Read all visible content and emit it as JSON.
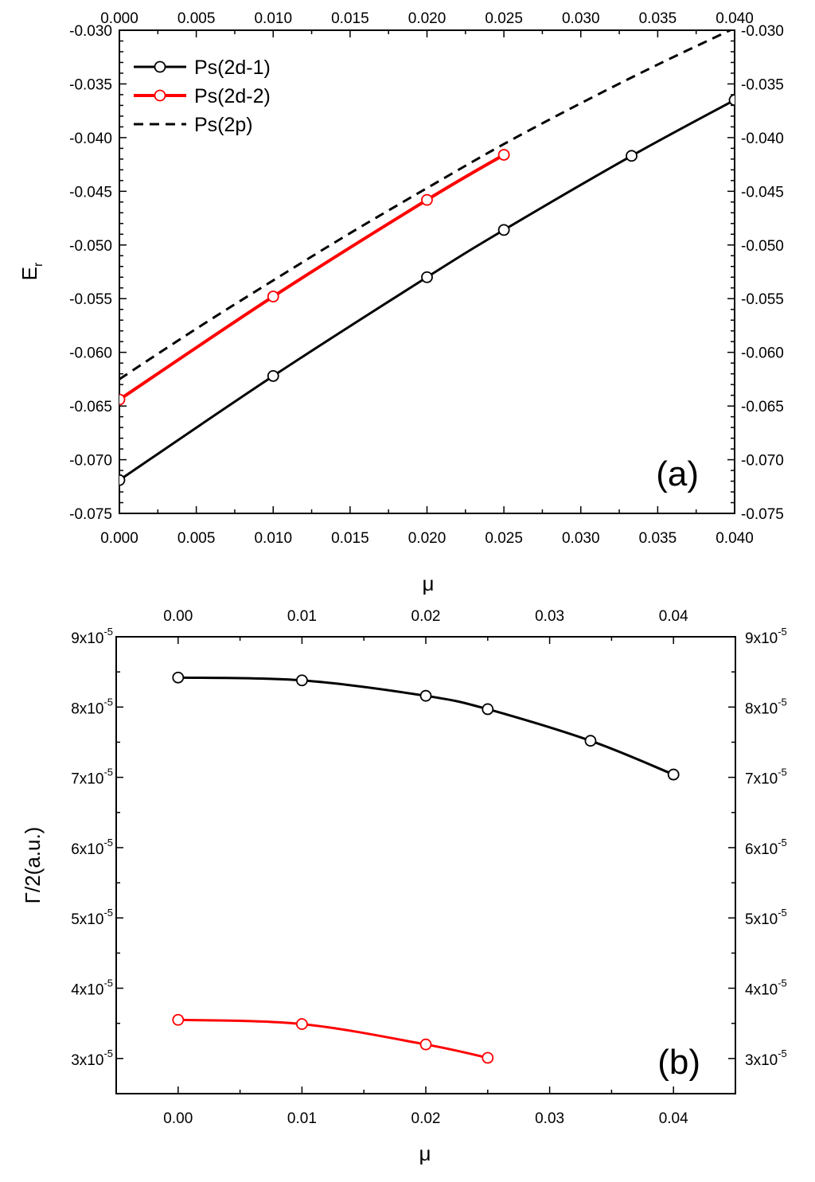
{
  "chart_data": [
    {
      "type": "line",
      "panel_label": "(a)",
      "xlabel": "μ",
      "ylabel": "E",
      "ylabel_sub": "r",
      "xlim": [
        0.0,
        0.04
      ],
      "ylim": [
        -0.075,
        -0.03
      ],
      "x_ticks": [
        "0.000",
        "0.005",
        "0.010",
        "0.015",
        "0.020",
        "0.025",
        "0.030",
        "0.035",
        "0.040"
      ],
      "y_ticks": [
        "-0.030",
        "-0.035",
        "-0.040",
        "-0.045",
        "-0.050",
        "-0.055",
        "-0.060",
        "-0.065",
        "-0.070",
        "-0.075"
      ],
      "legend_position": "top-left",
      "series": [
        {
          "name": "Ps(2d-1)",
          "color": "#000000",
          "style": "solid-with-open-circles",
          "x": [
            0.0,
            0.01,
            0.02,
            0.025,
            0.0333,
            0.04
          ],
          "y": [
            -0.0719,
            -0.0622,
            -0.053,
            -0.0486,
            -0.0417,
            -0.0365
          ]
        },
        {
          "name": "Ps(2d-2)",
          "color": "#ff0000",
          "style": "solid-with-open-circles",
          "x": [
            0.0,
            0.01,
            0.02,
            0.025
          ],
          "y": [
            -0.0644,
            -0.0548,
            -0.0458,
            -0.0416
          ]
        },
        {
          "name": "Ps(2p)",
          "color": "#000000",
          "style": "dashed",
          "x": [
            0.0,
            0.005,
            0.01,
            0.015,
            0.02,
            0.025,
            0.03,
            0.035,
            0.04
          ],
          "y": [
            -0.0625,
            -0.0578,
            -0.0533,
            -0.0489,
            -0.0447,
            -0.0406,
            -0.0368,
            -0.0332,
            -0.0298
          ]
        }
      ]
    },
    {
      "type": "line",
      "panel_label": "(b)",
      "xlabel": "μ",
      "ylabel": "Γ/2(a.u.)",
      "xlim": [
        -0.005,
        0.045
      ],
      "ylim": [
        2.5e-05,
        9e-05
      ],
      "x_ticks": [
        "0.00",
        "0.01",
        "0.02",
        "0.03",
        "0.04"
      ],
      "y_ticks": [
        {
          "mantissa": "9x10",
          "exp": "-5"
        },
        {
          "mantissa": "8x10",
          "exp": "-5"
        },
        {
          "mantissa": "7x10",
          "exp": "-5"
        },
        {
          "mantissa": "6x10",
          "exp": "-5"
        },
        {
          "mantissa": "5x10",
          "exp": "-5"
        },
        {
          "mantissa": "4x10",
          "exp": "-5"
        },
        {
          "mantissa": "3x10",
          "exp": "-5"
        }
      ],
      "series": [
        {
          "name": "Ps(2d-1)",
          "color": "#000000",
          "style": "solid-with-open-circles",
          "x": [
            0.0,
            0.01,
            0.02,
            0.025,
            0.0333,
            0.04
          ],
          "y": [
            8.42e-05,
            8.38e-05,
            8.16e-05,
            7.97e-05,
            7.52e-05,
            7.04e-05
          ]
        },
        {
          "name": "Ps(2d-2)",
          "color": "#ff0000",
          "style": "solid-with-open-circles",
          "x": [
            0.0,
            0.01,
            0.02,
            0.025
          ],
          "y": [
            3.55e-05,
            3.49e-05,
            3.2e-05,
            3.01e-05
          ]
        }
      ]
    }
  ]
}
